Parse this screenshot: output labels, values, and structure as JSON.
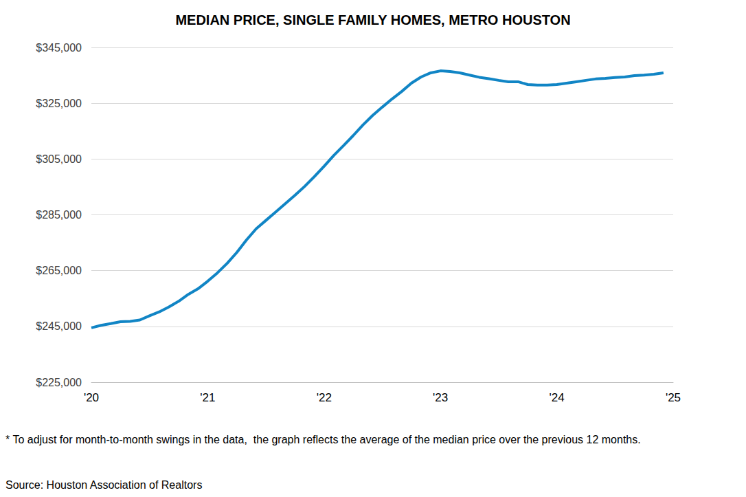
{
  "chart_data": {
    "type": "line",
    "title": "MEDIAN PRICE, SINGLE FAMILY HOMES, METRO HOUSTON",
    "categories": [
      "'20",
      null,
      null,
      null,
      null,
      null,
      null,
      null,
      null,
      null,
      null,
      null,
      "'21",
      null,
      null,
      null,
      null,
      null,
      null,
      null,
      null,
      null,
      null,
      null,
      "'22",
      null,
      null,
      null,
      null,
      null,
      null,
      null,
      null,
      null,
      null,
      null,
      "'23",
      null,
      null,
      null,
      null,
      null,
      null,
      null,
      null,
      null,
      null,
      null,
      "'24",
      null,
      null,
      null,
      null,
      null,
      null,
      null,
      null,
      null,
      null,
      null,
      "'25"
    ],
    "values": [
      244500,
      245400,
      246000,
      246700,
      246800,
      247300,
      248800,
      250200,
      252000,
      254000,
      256500,
      258500,
      261200,
      264200,
      267600,
      271500,
      276000,
      280000,
      283000,
      286000,
      289000,
      292000,
      295200,
      298700,
      302400,
      306300,
      309800,
      313400,
      317200,
      320600,
      323600,
      326500,
      329200,
      332200,
      334400,
      335900,
      336600,
      336400,
      335900,
      335100,
      334300,
      333800,
      333200,
      332700,
      332700,
      331700,
      331500,
      331500,
      331700,
      332200,
      332700,
      333200,
      333700,
      333900,
      334200,
      334400,
      334900,
      335100,
      335400,
      335900,
      null
    ],
    "color": "#1185c5",
    "ylim": [
      225000,
      345000
    ],
    "yticks": [
      {
        "value": 225000,
        "label": "$225,000"
      },
      {
        "value": 245000,
        "label": "$245,000"
      },
      {
        "value": 265000,
        "label": "$265,000"
      },
      {
        "value": 285000,
        "label": "$285,000"
      },
      {
        "value": 305000,
        "label": "$305,000"
      },
      {
        "value": 325000,
        "label": "$325,000"
      },
      {
        "value": 345000,
        "label": "$345,000"
      }
    ],
    "grid": true,
    "annotations": [
      "* To adjust for month-to-month swings in the data,  the graph reflects the average of the median price over the previous 12 months.",
      "Source: Houston Association of Realtors"
    ]
  }
}
